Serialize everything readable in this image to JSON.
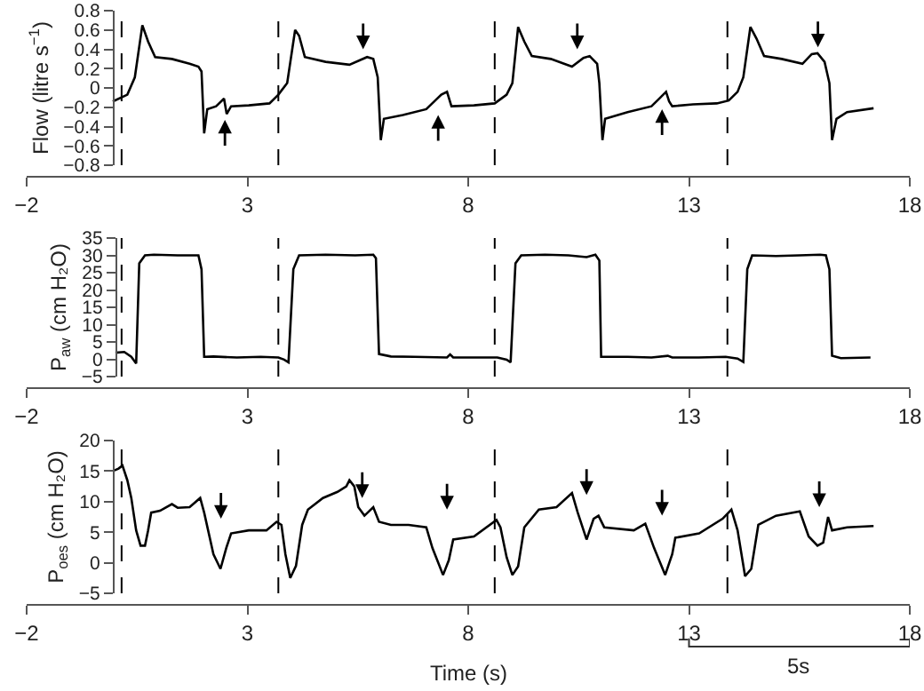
{
  "chart_data": [
    {
      "type": "line",
      "ylabel": "Flow (litre s$^{−1}$)",
      "xlim": [
        -2,
        18
      ],
      "xticks": [
        -2,
        3,
        8,
        13,
        18
      ],
      "ylim": [
        -0.8,
        0.8
      ],
      "yticks": [
        -0.8,
        -0.6,
        -0.4,
        -0.2,
        0,
        0.2,
        0.4,
        0.6,
        0.8
      ],
      "ref_lines": [
        {
          "axis": "x",
          "value": 0.15,
          "line_style": "dashed"
        },
        {
          "axis": "x",
          "value": 3.7,
          "line_style": "dashed"
        },
        {
          "axis": "x",
          "value": 8.6,
          "line_style": "dashed"
        },
        {
          "axis": "x",
          "value": 13.87,
          "line_style": "dashed"
        }
      ],
      "series": [
        {
          "color": "#000000",
          "x": [
            -0.05,
            0.28,
            0.45,
            0.62,
            0.75,
            0.91,
            1.29,
            1.69,
            1.89,
            1.96,
            2.02,
            2.09,
            2.29,
            2.47,
            2.53,
            2.63,
            3.03,
            3.5,
            3.7,
            3.9,
            4.08,
            4.17,
            4.3,
            4.77,
            5.31,
            5.71,
            5.85,
            5.95,
            6.02,
            6.09,
            6.52,
            7.05,
            7.39,
            7.52,
            7.62,
            8.13,
            8.6,
            8.87,
            9.0,
            9.13,
            9.27,
            9.44,
            9.87,
            10.35,
            10.61,
            10.75,
            10.92,
            10.97,
            11.04,
            11.1,
            11.61,
            12.15,
            12.35,
            12.48,
            12.55,
            12.62,
            13.09,
            13.63,
            13.9,
            14.1,
            14.23,
            14.39,
            14.53,
            14.7,
            15.1,
            15.57,
            15.78,
            15.91,
            16.07,
            16.18,
            16.24,
            16.34,
            16.58,
            17.18
          ],
          "values": [
            -0.14,
            -0.07,
            0.11,
            0.65,
            0.48,
            0.32,
            0.3,
            0.25,
            0.22,
            0.17,
            -0.47,
            -0.22,
            -0.19,
            -0.11,
            -0.27,
            -0.19,
            -0.18,
            -0.16,
            -0.07,
            0.05,
            0.6,
            0.54,
            0.32,
            0.27,
            0.24,
            0.32,
            0.3,
            0.11,
            -0.54,
            -0.32,
            -0.28,
            -0.22,
            -0.07,
            -0.04,
            -0.19,
            -0.18,
            -0.16,
            -0.07,
            0.05,
            0.63,
            0.48,
            0.33,
            0.3,
            0.22,
            0.31,
            0.33,
            0.25,
            0.05,
            -0.54,
            -0.32,
            -0.25,
            -0.19,
            -0.1,
            -0.04,
            -0.14,
            -0.19,
            -0.17,
            -0.16,
            -0.13,
            -0.04,
            0.11,
            0.63,
            0.51,
            0.33,
            0.3,
            0.25,
            0.35,
            0.36,
            0.27,
            0.05,
            -0.54,
            -0.32,
            -0.25,
            -0.21
          ]
        }
      ]
    },
    {
      "type": "line",
      "ylabel": "P$_{aw}$ (cm H₂O)",
      "xlim": [
        -2,
        18
      ],
      "xticks": [
        -2,
        3,
        8,
        13,
        18
      ],
      "ylim": [
        -5,
        35
      ],
      "yticks": [
        -5,
        0,
        5,
        10,
        15,
        20,
        25,
        30,
        35
      ],
      "ref_lines": [
        {
          "axis": "x",
          "value": 0.15,
          "line_style": "dashed"
        },
        {
          "axis": "x",
          "value": 3.7,
          "line_style": "dashed"
        },
        {
          "axis": "x",
          "value": 8.6,
          "line_style": "dashed"
        },
        {
          "axis": "x",
          "value": 13.87,
          "line_style": "dashed"
        }
      ],
      "series": [
        {
          "color": "#000000",
          "x": [
            0.01,
            0.21,
            0.37,
            0.48,
            0.55,
            0.68,
            0.88,
            1.42,
            1.89,
            1.96,
            2.02,
            2.23,
            2.76,
            3.3,
            3.7,
            3.83,
            3.93,
            4.04,
            4.17,
            4.77,
            5.44,
            5.85,
            5.91,
            5.98,
            6.25,
            6.79,
            7.52,
            7.59,
            7.66,
            8.13,
            8.66,
            8.87,
            8.96,
            9.07,
            9.2,
            9.74,
            10.27,
            10.68,
            10.88,
            10.97,
            11.01,
            11.61,
            12.15,
            12.52,
            12.62,
            13.22,
            13.83,
            14.1,
            14.23,
            14.32,
            14.43,
            14.97,
            15.5,
            15.97,
            16.1,
            16.18,
            16.24,
            16.44,
            17.11
          ],
          "values": [
            1.9,
            2.1,
            0.7,
            -1.2,
            27.7,
            30,
            30.2,
            30,
            30,
            26,
            0.7,
            0.8,
            0.5,
            0.7,
            0.5,
            -0.1,
            -0.9,
            26,
            30,
            30.2,
            30,
            30.2,
            29.2,
            1.5,
            0.8,
            0.7,
            0.5,
            1.4,
            0.5,
            0.5,
            0.5,
            -0.1,
            -0.9,
            27.7,
            30,
            30.2,
            30,
            29.5,
            30.2,
            28.5,
            0.7,
            0.7,
            0.5,
            1,
            0.5,
            0.5,
            0.7,
            0.2,
            -0.8,
            26,
            30,
            29.8,
            30,
            30.2,
            30,
            26,
            1,
            0.3,
            0.5
          ]
        }
      ]
    },
    {
      "type": "line",
      "ylabel": "P$_{oes}$ (cm H₂O)",
      "xlabel": "Time (s)",
      "xlim": [
        -2,
        18
      ],
      "xticks": [
        -2,
        3,
        8,
        13,
        18
      ],
      "ylim": [
        -5,
        20
      ],
      "yticks": [
        -5,
        0,
        5,
        10,
        15,
        20
      ],
      "annotations": [
        "5s"
      ],
      "ref_lines": [
        {
          "axis": "x",
          "value": 0.15,
          "line_style": "dashed"
        },
        {
          "axis": "x",
          "value": 3.7,
          "line_style": "dashed"
        },
        {
          "axis": "x",
          "value": 8.6,
          "line_style": "dashed"
        },
        {
          "axis": "x",
          "value": 13.87,
          "line_style": "dashed"
        }
      ],
      "series": [
        {
          "color": "#000000",
          "x": [
            -0.05,
            0.08,
            0.17,
            0.28,
            0.37,
            0.48,
            0.58,
            0.68,
            0.75,
            0.82,
            1.02,
            1.29,
            1.42,
            1.69,
            1.93,
            2.02,
            2.23,
            2.39,
            2.52,
            2.63,
            3.03,
            3.43,
            3.66,
            3.77,
            3.86,
            3.97,
            4.1,
            4.24,
            4.37,
            4.71,
            5.04,
            5.24,
            5.31,
            5.42,
            5.51,
            5.65,
            5.85,
            5.98,
            6.25,
            6.65,
            7.05,
            7.19,
            7.43,
            7.56,
            7.66,
            8.13,
            8.64,
            8.73,
            8.87,
            9.0,
            9.13,
            9.27,
            9.6,
            10.0,
            10.35,
            10.48,
            10.68,
            10.84,
            10.95,
            11.08,
            11.75,
            12.01,
            12.21,
            12.46,
            12.62,
            12.69,
            13.23,
            13.76,
            13.96,
            14.1,
            14.27,
            14.41,
            14.57,
            14.97,
            15.51,
            15.71,
            15.91,
            16.04,
            16.15,
            16.24,
            16.58,
            17.18
          ],
          "values": [
            15,
            15.4,
            15.9,
            13.5,
            10.6,
            5.3,
            2.8,
            2.8,
            5.3,
            8.2,
            8.5,
            9.6,
            9,
            9.1,
            10.6,
            8.2,
            1.4,
            -1,
            2.4,
            4.8,
            5.3,
            5.3,
            6.7,
            6.2,
            1.4,
            -2.5,
            -0.5,
            6.2,
            8.7,
            10.6,
            11.6,
            12.5,
            13.5,
            12.5,
            9.1,
            7.7,
            9.1,
            6.7,
            6.2,
            6.2,
            5.8,
            2.4,
            -2,
            0.4,
            3.8,
            4.3,
            7,
            5.8,
            0.9,
            -2,
            -0.6,
            5.8,
            8.7,
            9.1,
            11.4,
            8.2,
            3.8,
            7.2,
            7.7,
            5.8,
            5.3,
            6.4,
            2.4,
            -2,
            1.4,
            4.1,
            4.8,
            7.2,
            8.7,
            5.3,
            -2.2,
            -1,
            6.2,
            7.7,
            8.4,
            4.3,
            2.8,
            3.3,
            7.5,
            5.3,
            5.8,
            6
          ]
        }
      ]
    }
  ]
}
